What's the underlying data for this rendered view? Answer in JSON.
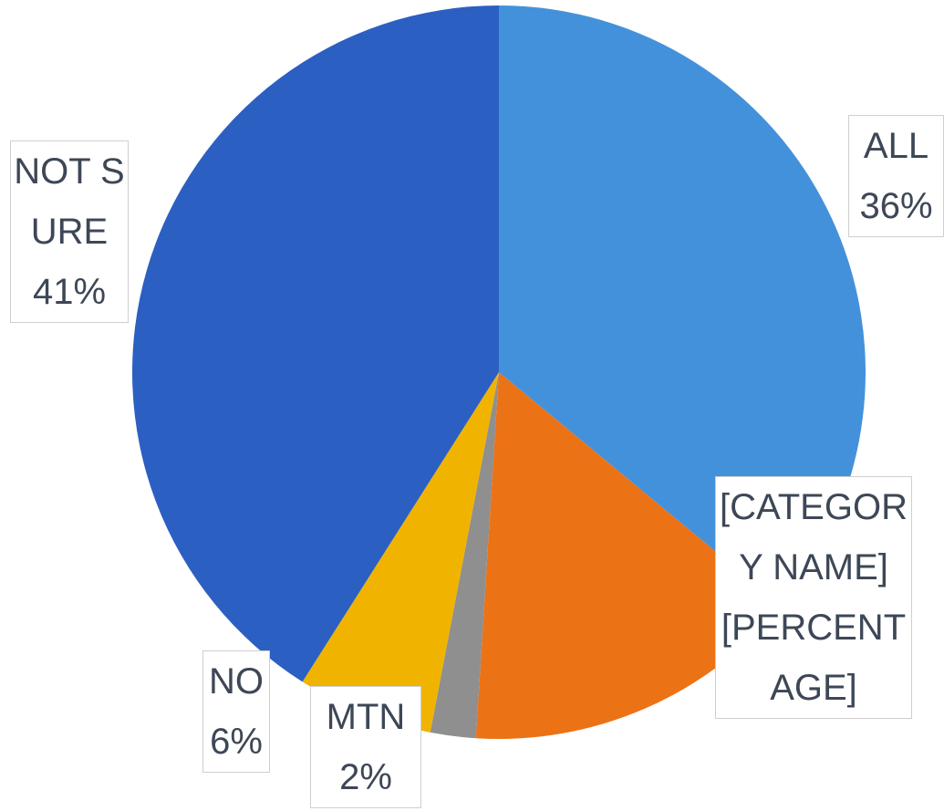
{
  "chart_data": {
    "type": "pie",
    "categories": [
      "ALL",
      "[CATEGORY NAME]",
      "MTN",
      "NO",
      "NOT SURE"
    ],
    "values": [
      36,
      15,
      2,
      6,
      41
    ],
    "value_labels": [
      "36%",
      "[PERCENTAGE]",
      "2%",
      "6%",
      "41%"
    ],
    "colors": [
      "#4491db",
      "#ec7216",
      "#8f8f8f",
      "#f0b400",
      "#2c5fc2"
    ]
  }
}
